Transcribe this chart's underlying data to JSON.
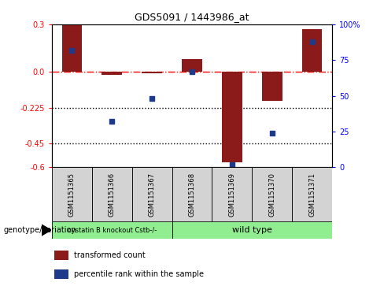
{
  "title": "GDS5091 / 1443986_at",
  "samples": [
    "GSM1151365",
    "GSM1151366",
    "GSM1151367",
    "GSM1151368",
    "GSM1151369",
    "GSM1151370",
    "GSM1151371"
  ],
  "transformed_count": [
    0.3,
    -0.02,
    -0.01,
    0.08,
    -0.57,
    -0.18,
    0.27
  ],
  "percentile_rank": [
    82,
    32,
    48,
    67,
    2,
    24,
    88
  ],
  "ylim": [
    -0.6,
    0.3
  ],
  "yticks_left": [
    0.3,
    0.0,
    -0.225,
    -0.45,
    -0.6
  ],
  "yticks_right": [
    100,
    75,
    50,
    25,
    0
  ],
  "hline_y": 0.0,
  "dotted_lines": [
    -0.225,
    -0.45
  ],
  "bar_color": "#8B1A1A",
  "dot_color": "#1E3A8A",
  "group1_indices": [
    0,
    1,
    2
  ],
  "group2_indices": [
    3,
    4,
    5,
    6
  ],
  "group1_label": "cystatin B knockout Cstb-/-",
  "group2_label": "wild type",
  "group_color": "#90EE90",
  "legend_bar_label": "transformed count",
  "legend_dot_label": "percentile rank within the sample",
  "genotype_label": "genotype/variation"
}
